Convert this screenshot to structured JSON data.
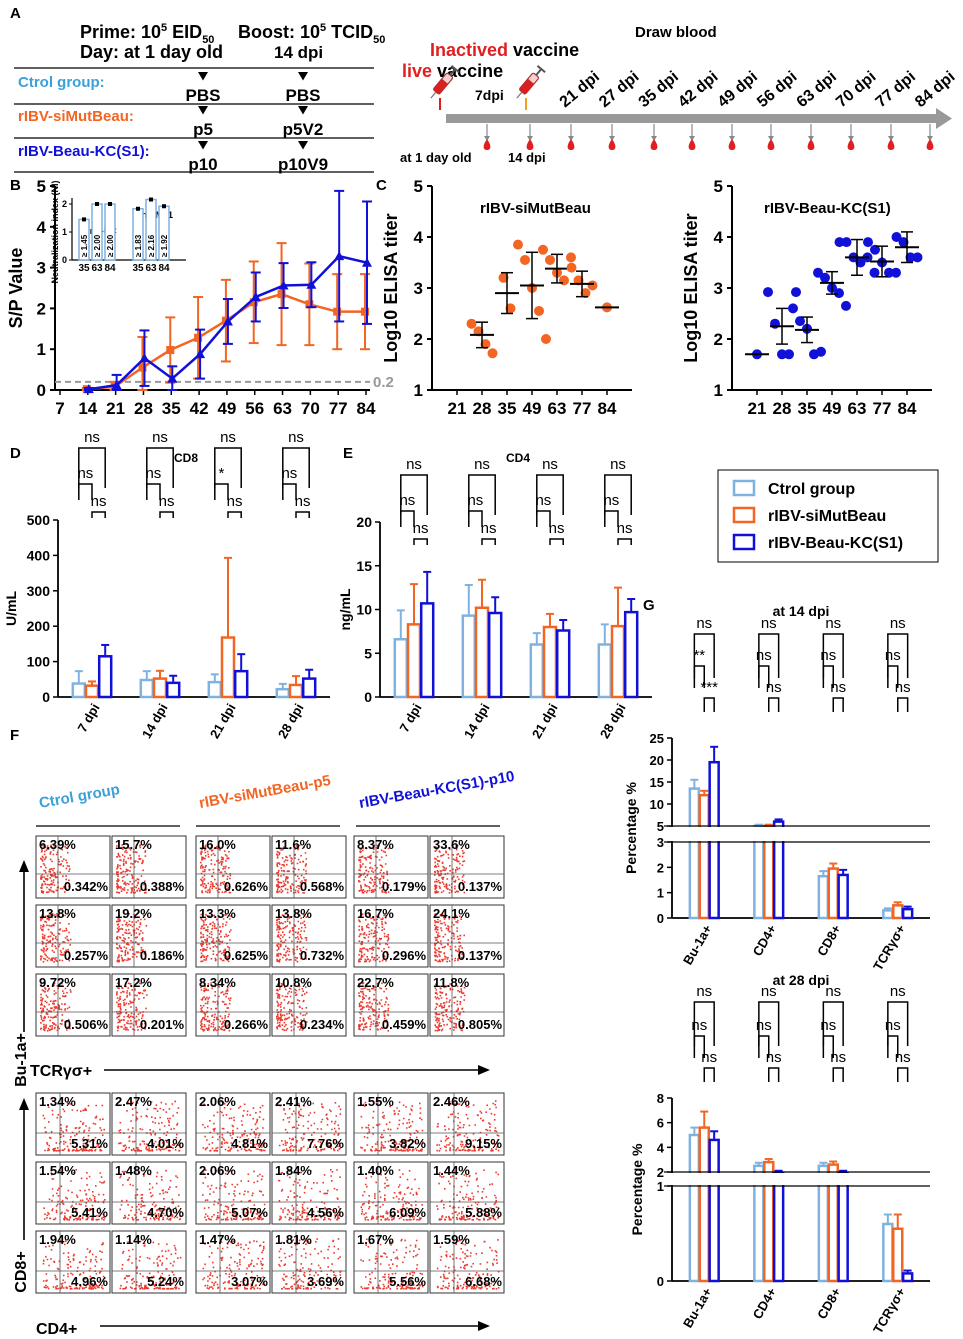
{
  "colors": {
    "ctrl": "#7fb2e0",
    "siMut": "#f26522",
    "beau": "#1010d8",
    "grey": "#9a9a9a",
    "red": "#e02020",
    "flow": "#e8190c"
  },
  "panel_labels": [
    "A",
    "B",
    "C",
    "D",
    "E",
    "F",
    "G"
  ],
  "panelA": {
    "prime": "Prime: 10",
    "prime_sup": "5",
    "prime_unit": " EID",
    "prime_sub": "50",
    "boost": "Boost: 10",
    "boost_sup": "5",
    "boost_unit": " TCID",
    "boost_sub": "50",
    "day_label": "Day: at 1 day old",
    "day2": "14 dpi",
    "rows": [
      {
        "group": "Ctrol group:",
        "prime": "PBS",
        "boost": "PBS",
        "color": "#3aa0d8"
      },
      {
        "group": "rIBV-siMutBeau:",
        "prime": "p5",
        "boost": "p5V2",
        "color": "#f26522"
      },
      {
        "group": "rIBV-Beau-KC(S1):",
        "prime": "p10",
        "boost": "p10V9",
        "color": "#1010d8"
      }
    ],
    "timeline": {
      "inactivated": "Inactived",
      "vaccine1": " vaccine",
      "live": "live",
      "vaccine2": " vaccine",
      "draw_blood": "Draw blood",
      "sevendpi": "7dpi",
      "start": "at 1 day old",
      "boost": "14 dpi",
      "days": [
        "21 dpi",
        "27 dpi",
        "35 dpi",
        "42 dpi",
        "49 dpi",
        "56 dpi",
        "63 dpi",
        "70 dpi",
        "77 dpi",
        "84 dpi"
      ]
    }
  },
  "chart_data": [
    {
      "id": "B",
      "type": "line",
      "ylabel": "S/P Value",
      "ylim": [
        0,
        5
      ],
      "x": [
        7,
        14,
        21,
        28,
        35,
        42,
        49,
        56,
        63,
        70,
        77,
        84
      ],
      "threshold": 0.2,
      "threshold_label": "0.2",
      "series": [
        {
          "name": "rIBV-siMutBeau",
          "x": [
            14,
            21,
            28,
            35,
            42,
            49,
            56,
            63,
            70,
            77,
            84
          ],
          "values": [
            0.02,
            0.08,
            0.55,
            0.98,
            1.28,
            1.7,
            2.15,
            2.35,
            2.1,
            1.92,
            1.92
          ],
          "err": [
            0.03,
            0.12,
            0.75,
            0.8,
            1.0,
            1.0,
            1.0,
            1.25,
            1.0,
            0.92,
            0.92
          ]
        },
        {
          "name": "rIBV-Beau-KC(S1)",
          "x": [
            14,
            21,
            28,
            35,
            42,
            49,
            56,
            63,
            70,
            77,
            84
          ],
          "values": [
            0.02,
            0.12,
            0.78,
            0.28,
            0.88,
            1.68,
            2.28,
            2.56,
            2.58,
            3.28,
            3.12
          ],
          "err": [
            0.03,
            0.25,
            0.68,
            0.3,
            0.6,
            0.55,
            0.6,
            0.55,
            0.55,
            1.6,
            1.5
          ]
        }
      ],
      "inset": {
        "ylabel": "Neutralization index (NI)",
        "ylim": [
          0,
          2
        ],
        "groups": [
          {
            "title": "Anti-KC",
            "categories": [
              "35",
              "63",
              "84"
            ],
            "values": [
              1.45,
              2.0,
              2.0
            ],
            "labels": [
              "≥ 1.45",
              "≥ 2.00",
              "≥ 2.00"
            ]
          },
          {
            "title": "Anti-M41",
            "categories": [
              "35",
              "63",
              "84"
            ],
            "values": [
              1.83,
              2.16,
              1.92
            ],
            "labels": [
              "≥ 1.83",
              "≥ 2.16",
              "≥ 1.92"
            ]
          }
        ]
      }
    },
    {
      "id": "C1",
      "type": "scatter",
      "title": "rIBV-siMutBeau",
      "ylabel": "Log10 ELISA titer",
      "ylim": [
        1,
        5
      ],
      "categories": [
        "21",
        "28",
        "35",
        "49",
        "63",
        "77",
        "84"
      ],
      "means": [
        null,
        2.08,
        2.9,
        3.05,
        3.38,
        3.08,
        2.62
      ],
      "err": [
        null,
        0.25,
        0.4,
        0.65,
        0.28,
        0.25,
        0
      ],
      "points": [
        [],
        [
          2.3,
          2.15,
          1.9,
          1.72
        ],
        [
          3.2,
          2.6
        ],
        [
          3.85,
          3.55,
          3.0,
          2.55,
          2.0
        ],
        [
          3.75,
          3.55,
          3.3,
          3.15,
          3.6
        ],
        [
          3.4,
          3.15,
          2.9,
          3.05
        ],
        [
          2.62
        ]
      ]
    },
    {
      "id": "C2",
      "type": "scatter",
      "title": "rIBV-Beau-KC(S1)",
      "ylabel": "Log10 ELISA titer",
      "ylim": [
        1,
        5
      ],
      "categories": [
        "21",
        "28",
        "35",
        "49",
        "63",
        "77",
        "84"
      ],
      "means": [
        1.7,
        2.25,
        2.18,
        3.1,
        3.6,
        3.52,
        3.8
      ],
      "err": [
        0,
        0.35,
        0.25,
        0.22,
        0.35,
        0.3,
        0.3
      ],
      "points": [
        [
          1.7
        ],
        [
          2.92,
          2.3,
          1.7,
          1.7,
          2.92
        ],
        [
          2.6,
          2.35,
          2.2,
          1.7,
          1.75
        ],
        [
          3.3,
          3.2,
          3.0,
          2.9,
          2.65
        ],
        [
          3.9,
          3.9,
          3.6,
          3.5,
          3.6,
          3.3
        ],
        [
          3.9,
          3.75,
          3.5,
          3.3,
          3.3
        ],
        [
          4.0,
          3.9,
          3.6,
          3.6
        ]
      ]
    },
    {
      "id": "D",
      "type": "bar",
      "title": "CD8",
      "ylabel": "U/mL",
      "ylim": [
        0,
        500
      ],
      "yticks": [
        0,
        100,
        200,
        300,
        400,
        500
      ],
      "categories": [
        "7 dpi",
        "14 dpi",
        "21 dpi",
        "28 dpi"
      ],
      "series": [
        {
          "name": "Ctrol group",
          "values": [
            38,
            48,
            42,
            22
          ],
          "err": [
            35,
            25,
            22,
            15
          ]
        },
        {
          "name": "rIBV-siMutBeau",
          "values": [
            32,
            52,
            168,
            34
          ],
          "err": [
            12,
            22,
            225,
            25
          ]
        },
        {
          "name": "rIBV-Beau-KC(S1)",
          "values": [
            115,
            40,
            73,
            52
          ],
          "err": [
            32,
            20,
            48,
            25
          ]
        }
      ],
      "sig": [
        [
          "ns",
          "ns",
          "ns"
        ],
        [
          "ns",
          "ns",
          "ns"
        ],
        [
          "ns",
          "*",
          "ns"
        ],
        [
          "ns",
          "ns",
          "ns"
        ]
      ]
    },
    {
      "id": "E",
      "type": "bar",
      "title": "CD4",
      "ylabel": "ng/mL",
      "ylim": [
        0,
        20
      ],
      "yticks": [
        0,
        5,
        10,
        15,
        20
      ],
      "categories": [
        "7 dpi",
        "14 dpi",
        "21 dpi",
        "28 dpi"
      ],
      "series": [
        {
          "name": "Ctrol group",
          "values": [
            6.6,
            9.3,
            6.0,
            6.0
          ],
          "err": [
            3.3,
            3.5,
            1.3,
            2.3
          ]
        },
        {
          "name": "rIBV-siMutBeau",
          "values": [
            8.3,
            10.2,
            8.0,
            8.1
          ],
          "err": [
            4.6,
            3.2,
            1.5,
            4.4
          ]
        },
        {
          "name": "rIBV-Beau-KC(S1)",
          "values": [
            10.7,
            9.6,
            7.6,
            9.7
          ],
          "err": [
            3.6,
            1.8,
            1.2,
            1.5
          ]
        }
      ],
      "sig": [
        [
          "ns",
          "ns",
          "ns"
        ],
        [
          "ns",
          "ns",
          "ns"
        ],
        [
          "ns",
          "ns",
          "ns"
        ],
        [
          "ns",
          "ns",
          "ns"
        ]
      ]
    },
    {
      "id": "G1",
      "type": "bar",
      "title": "at 14 dpi",
      "ylabel": "Percentage %",
      "categories": [
        "Bu-1a+",
        "CD4+",
        "CD8+",
        "TCRγσ+"
      ],
      "yticks_low": [
        0,
        1,
        2,
        3
      ],
      "yticks_high": [
        5,
        10,
        15,
        20,
        25
      ],
      "series": [
        {
          "name": "Ctrol group",
          "values": [
            13.5,
            5.0,
            1.65,
            0.3
          ],
          "err": [
            2.0,
            0.3,
            0.2,
            0.08
          ]
        },
        {
          "name": "rIBV-siMutBeau",
          "values": [
            12.0,
            5.0,
            1.95,
            0.5
          ],
          "err": [
            1.0,
            0.3,
            0.2,
            0.12
          ]
        },
        {
          "name": "rIBV-Beau-KC(S1)",
          "values": [
            19.5,
            6.0,
            1.7,
            0.35
          ],
          "err": [
            3.5,
            0.5,
            0.2,
            0.1
          ]
        }
      ],
      "sig": [
        [
          "ns",
          "**",
          "***"
        ],
        [
          "ns",
          "ns",
          "ns"
        ],
        [
          "ns",
          "ns",
          "ns"
        ],
        [
          "ns",
          "ns",
          "ns"
        ]
      ]
    },
    {
      "id": "G2",
      "type": "bar",
      "title": "at 28 dpi",
      "ylabel": "Percentage %",
      "categories": [
        "Bu-1a+",
        "CD4+",
        "CD8+",
        "TCRγσ+"
      ],
      "yticks_low": [
        0,
        1
      ],
      "yticks_high": [
        2,
        4,
        6,
        8
      ],
      "series": [
        {
          "name": "Ctrol group",
          "values": [
            5.0,
            2.5,
            2.5,
            0.6
          ],
          "err": [
            0.6,
            0.25,
            0.25,
            0.1
          ]
        },
        {
          "name": "rIBV-siMutBeau",
          "values": [
            5.6,
            2.8,
            2.6,
            0.55
          ],
          "err": [
            1.3,
            0.25,
            0.25,
            0.15
          ]
        },
        {
          "name": "rIBV-Beau-KC(S1)",
          "values": [
            4.6,
            1.9,
            1.9,
            0.08
          ],
          "err": [
            0.7,
            0.2,
            0.2,
            0.03
          ]
        }
      ],
      "sig": [
        [
          "ns",
          "ns",
          "ns"
        ],
        [
          "ns",
          "ns",
          "ns"
        ],
        [
          "ns",
          "ns",
          "ns"
        ],
        [
          "ns",
          "ns",
          "ns"
        ]
      ]
    }
  ],
  "legend": {
    "entries": [
      "Ctrol group",
      "rIBV-siMutBeau",
      "rIBV-Beau-KC(S1)"
    ]
  },
  "panelF": {
    "headers": [
      {
        "text": "Ctrol group",
        "color": "#3aa0d8"
      },
      {
        "text": "rIBV-siMutBeau-p5",
        "color": "#f26522"
      },
      {
        "text": "rIBV-Beau-KC(S1)-p10",
        "color": "#1010d8"
      }
    ],
    "axis_y_top": "Bu-1a+",
    "axis_x_top": "TCRγσ+",
    "axis_y_bottom": "CD8+",
    "axis_x_bottom": "CD4+",
    "top_grid": [
      [
        [
          "6.39%",
          "0.342%"
        ],
        [
          "15.7%",
          "0.388%"
        ],
        [
          "16.0%",
          "0.626%"
        ],
        [
          "11.6%",
          "0.568%"
        ],
        [
          "8.37%",
          "0.179%"
        ],
        [
          "33.6%",
          "0.137%"
        ]
      ],
      [
        [
          "13.8%",
          "0.257%"
        ],
        [
          "19.2%",
          "0.186%"
        ],
        [
          "13.3%",
          "0.625%"
        ],
        [
          "13.8%",
          "0.732%"
        ],
        [
          "16.7%",
          "0.296%"
        ],
        [
          "24.1%",
          "0.137%"
        ]
      ],
      [
        [
          "9.72%",
          "0.506%"
        ],
        [
          "17.2%",
          "0.201%"
        ],
        [
          "8.34%",
          "0.266%"
        ],
        [
          "10.8%",
          "0.234%"
        ],
        [
          "22.7%",
          "0.459%"
        ],
        [
          "11.8%",
          "0.805%"
        ]
      ]
    ],
    "bottom_grid": [
      [
        [
          "1.34%",
          "5.31%"
        ],
        [
          "2.47%",
          "4.01%"
        ],
        [
          "2.06%",
          "4.81%"
        ],
        [
          "2.41%",
          "7.76%"
        ],
        [
          "1.55%",
          "3.82%"
        ],
        [
          "2.46%",
          "9.15%"
        ]
      ],
      [
        [
          "1.54%",
          "5.41%"
        ],
        [
          "1.48%",
          "4.70%"
        ],
        [
          "2.06%",
          "5.07%"
        ],
        [
          "1.84%",
          "4.56%"
        ],
        [
          "1.40%",
          "6.09%"
        ],
        [
          "1.44%",
          "5.88%"
        ]
      ],
      [
        [
          "1.94%",
          "4.96%"
        ],
        [
          "1.14%",
          "5.24%"
        ],
        [
          "1.47%",
          "3.07%"
        ],
        [
          "1.81%",
          "3.69%"
        ],
        [
          "1.67%",
          "5.56%"
        ],
        [
          "1.59%",
          "6.68%"
        ]
      ]
    ]
  }
}
